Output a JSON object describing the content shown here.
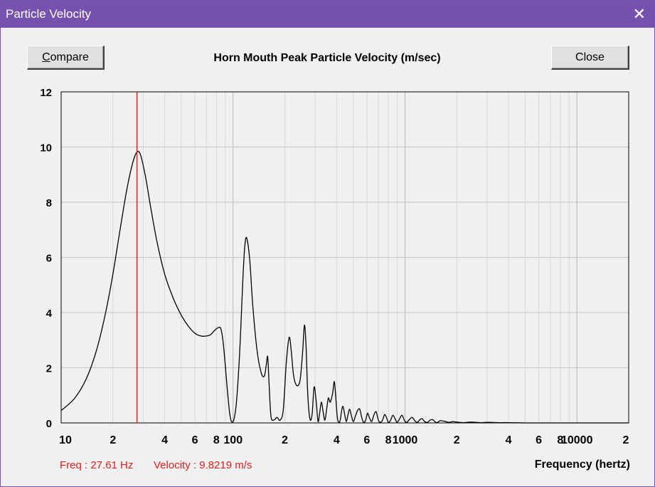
{
  "window": {
    "title": "Particle Velocity",
    "close_icon": "close-icon"
  },
  "buttons": {
    "compare_prefix": "C",
    "compare_rest": "ompare",
    "close_label": "Close"
  },
  "readout": {
    "freq": "Freq : 27.61 Hz",
    "velocity": "Velocity : 9.8219 m/s"
  },
  "chart_data": {
    "type": "line",
    "title": "Horn Mouth Peak Particle Velocity (m/sec)",
    "xlabel": "Frequency (hertz)",
    "ylabel": "",
    "xscale": "log",
    "xlim": [
      10,
      20000
    ],
    "ylim": [
      0,
      12
    ],
    "grid": true,
    "y_ticks": [
      "0",
      "2",
      "4",
      "6",
      "8",
      "10",
      "12"
    ],
    "x_tick_labels": [
      {
        "f": 10,
        "t": "10"
      },
      {
        "f": 20,
        "t": "2"
      },
      {
        "f": 40,
        "t": "4"
      },
      {
        "f": 60,
        "t": "6"
      },
      {
        "f": 80,
        "t": "8"
      },
      {
        "f": 100,
        "t": "100"
      },
      {
        "f": 200,
        "t": "2"
      },
      {
        "f": 400,
        "t": "4"
      },
      {
        "f": 600,
        "t": "6"
      },
      {
        "f": 800,
        "t": "8"
      },
      {
        "f": 1000,
        "t": "1000"
      },
      {
        "f": 2000,
        "t": "2"
      },
      {
        "f": 4000,
        "t": "4"
      },
      {
        "f": 6000,
        "t": "6"
      },
      {
        "f": 8000,
        "t": "8"
      },
      {
        "f": 10000,
        "t": "10000"
      },
      {
        "f": 20000,
        "t": "2"
      }
    ],
    "cursor": {
      "freq_hz": 27.61,
      "velocity": 9.8219,
      "color": "#e02020"
    },
    "line_color": "#000000",
    "series": [
      {
        "name": "Peak Particle Velocity",
        "x": [
          10,
          12,
          14,
          16,
          18,
          20,
          22,
          24,
          26,
          27.61,
          29,
          31,
          33,
          36,
          40,
          45,
          50,
          55,
          60,
          65,
          70,
          74,
          78,
          82,
          85,
          88,
          92,
          96,
          100,
          104,
          108,
          111,
          114,
          117,
          120,
          125,
          130,
          138,
          146,
          152,
          156,
          159,
          162,
          166,
          172,
          180,
          188,
          196,
          204,
          212,
          218,
          224,
          230,
          238,
          246,
          254,
          260,
          266,
          272,
          280,
          288,
          296,
          304,
          312,
          318,
          326,
          334,
          342,
          350,
          358,
          366,
          372,
          380,
          388,
          396,
          404,
          412,
          420,
          428,
          436,
          446,
          456,
          466,
          476,
          486,
          500,
          515,
          530,
          545,
          560,
          575,
          590,
          605,
          620,
          640,
          660,
          680,
          700,
          720,
          740,
          760,
          780,
          800,
          825,
          850,
          875,
          900,
          930,
          960,
          990,
          1020,
          1060,
          1100,
          1140,
          1180,
          1220,
          1260,
          1300,
          1350,
          1400,
          1450,
          1500,
          1550,
          1600,
          1700,
          1800,
          1900,
          2000,
          2200,
          2400,
          2600,
          2800,
          3000,
          3500,
          4000,
          5000,
          6000,
          8000,
          10000,
          15000,
          20000
        ],
        "y": [
          0.45,
          0.9,
          1.6,
          2.6,
          3.9,
          5.4,
          7.0,
          8.4,
          9.4,
          9.82,
          9.7,
          8.9,
          7.9,
          6.6,
          5.4,
          4.5,
          3.9,
          3.5,
          3.25,
          3.15,
          3.15,
          3.2,
          3.35,
          3.45,
          3.4,
          2.8,
          1.4,
          0.25,
          0.05,
          0.6,
          2.0,
          3.5,
          5.2,
          6.4,
          6.7,
          5.9,
          4.3,
          2.6,
          1.8,
          1.7,
          2.1,
          2.4,
          1.4,
          0.25,
          0.1,
          0.2,
          0.1,
          0.5,
          2.2,
          3.1,
          2.6,
          1.8,
          1.45,
          1.35,
          1.6,
          2.6,
          3.55,
          2.7,
          1.0,
          0.15,
          0.3,
          1.3,
          0.8,
          0.05,
          0.3,
          0.75,
          0.4,
          0.1,
          0.5,
          0.9,
          0.75,
          0.85,
          1.1,
          1.5,
          0.9,
          0.2,
          0.02,
          0.1,
          0.45,
          0.6,
          0.3,
          0.05,
          0.3,
          0.5,
          0.3,
          0.05,
          0.25,
          0.45,
          0.5,
          0.2,
          0.02,
          0.1,
          0.35,
          0.2,
          0.05,
          0.3,
          0.4,
          0.1,
          0.02,
          0.1,
          0.3,
          0.2,
          0.02,
          0.1,
          0.28,
          0.15,
          0.02,
          0.15,
          0.28,
          0.1,
          0.02,
          0.12,
          0.2,
          0.08,
          0.02,
          0.12,
          0.15,
          0.05,
          0.02,
          0.1,
          0.12,
          0.03,
          0.02,
          0.08,
          0.06,
          0.02,
          0.05,
          0.03,
          0.01,
          0.03,
          0.02,
          0.01,
          0.02,
          0.01,
          0.01,
          0.0,
          0.0,
          0.0,
          0.0,
          0.0,
          0.0
        ]
      }
    ]
  }
}
